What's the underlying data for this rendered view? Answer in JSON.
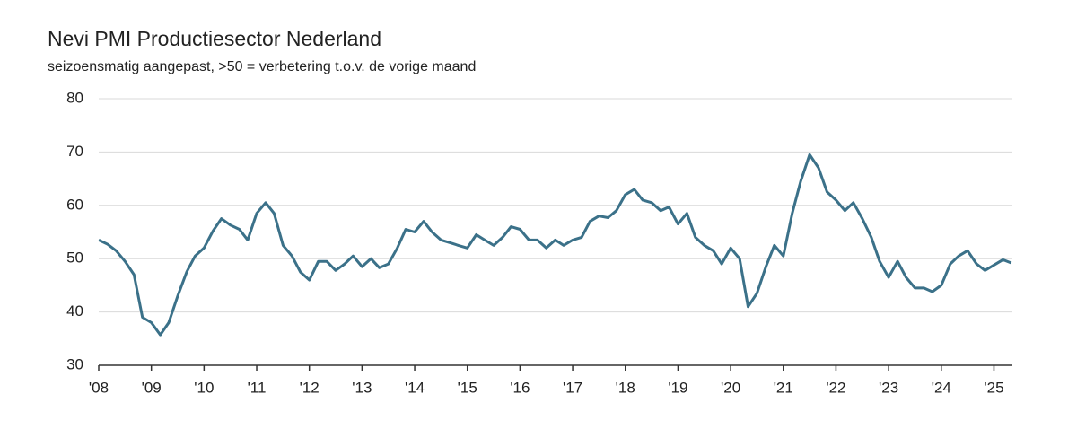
{
  "chart_data": {
    "type": "line",
    "title": "Nevi PMI Productiesector Nederland",
    "subtitle": "seizoensmatig aangepast, >50 = verbetering t.o.v. de vorige maand",
    "color": "#3b7189",
    "grid": true,
    "x": [
      2008,
      2008.17,
      2008.33,
      2008.5,
      2008.67,
      2008.83,
      2009,
      2009.17,
      2009.33,
      2009.5,
      2009.67,
      2009.83,
      2010,
      2010.17,
      2010.33,
      2010.5,
      2010.67,
      2010.83,
      2011,
      2011.17,
      2011.33,
      2011.5,
      2011.67,
      2011.83,
      2012,
      2012.17,
      2012.33,
      2012.5,
      2012.67,
      2012.83,
      2013,
      2013.17,
      2013.33,
      2013.5,
      2013.67,
      2013.83,
      2014,
      2014.17,
      2014.33,
      2014.5,
      2014.67,
      2014.83,
      2015,
      2015.17,
      2015.33,
      2015.5,
      2015.67,
      2015.83,
      2016,
      2016.17,
      2016.33,
      2016.5,
      2016.67,
      2016.83,
      2017,
      2017.17,
      2017.33,
      2017.5,
      2017.67,
      2017.83,
      2018,
      2018.17,
      2018.33,
      2018.5,
      2018.67,
      2018.83,
      2019,
      2019.17,
      2019.33,
      2019.5,
      2019.67,
      2019.83,
      2020,
      2020.17,
      2020.33,
      2020.5,
      2020.67,
      2020.83,
      2021,
      2021.17,
      2021.33,
      2021.5,
      2021.67,
      2021.83,
      2022,
      2022.17,
      2022.33,
      2022.5,
      2022.67,
      2022.83,
      2023,
      2023.17,
      2023.33,
      2023.5,
      2023.67,
      2023.83,
      2024,
      2024.17,
      2024.33,
      2024.5,
      2024.67,
      2024.83,
      2025,
      2025.17,
      2025.33
    ],
    "values": [
      53.5,
      52.7,
      51.5,
      49.5,
      47,
      39,
      38,
      35.7,
      38,
      43,
      47.5,
      50.5,
      52,
      55.2,
      57.5,
      56.3,
      55.5,
      53.5,
      58.5,
      60.5,
      58.5,
      52.5,
      50.5,
      47.5,
      46,
      49.5,
      49.5,
      47.8,
      49,
      50.5,
      48.5,
      50,
      48.3,
      49,
      52,
      55.5,
      55,
      57,
      55,
      53.5,
      53,
      52.5,
      52,
      54.5,
      53.5,
      52.5,
      54,
      56,
      55.5,
      53.5,
      53.5,
      52,
      53.5,
      52.5,
      53.5,
      54,
      57,
      58,
      57.7,
      59,
      62,
      63,
      61,
      60.5,
      59,
      59.7,
      56.5,
      58.5,
      54,
      52.5,
      51.5,
      49,
      52,
      50,
      41,
      43.5,
      48.5,
      52.5,
      50.5,
      58.5,
      64.5,
      69.5,
      67,
      62.5,
      61,
      59,
      60.5,
      57.5,
      54,
      49.5,
      46.5,
      49.5,
      46.5,
      44.5,
      44.5,
      43.8,
      45,
      49,
      50.5,
      51.5,
      49,
      47.8,
      48.8,
      49.8,
      49.2
    ],
    "xlim": [
      2008,
      2025.35
    ],
    "xticks": [
      {
        "value": 2008,
        "label": "'08"
      },
      {
        "value": 2009,
        "label": "'09"
      },
      {
        "value": 2010,
        "label": "'10"
      },
      {
        "value": 2011,
        "label": "'11"
      },
      {
        "value": 2012,
        "label": "'12"
      },
      {
        "value": 2013,
        "label": "'13"
      },
      {
        "value": 2014,
        "label": "'14"
      },
      {
        "value": 2015,
        "label": "'15"
      },
      {
        "value": 2016,
        "label": "'16"
      },
      {
        "value": 2017,
        "label": "'17"
      },
      {
        "value": 2018,
        "label": "'18"
      },
      {
        "value": 2019,
        "label": "'19"
      },
      {
        "value": 2020,
        "label": "'20"
      },
      {
        "value": 2021,
        "label": "'21"
      },
      {
        "value": 2022,
        "label": "'22"
      },
      {
        "value": 2023,
        "label": "'23"
      },
      {
        "value": 2024,
        "label": "'24"
      },
      {
        "value": 2025,
        "label": "'25"
      }
    ],
    "ylim": [
      30,
      80
    ],
    "yticks": [
      30,
      40,
      50,
      60,
      70,
      80
    ]
  }
}
